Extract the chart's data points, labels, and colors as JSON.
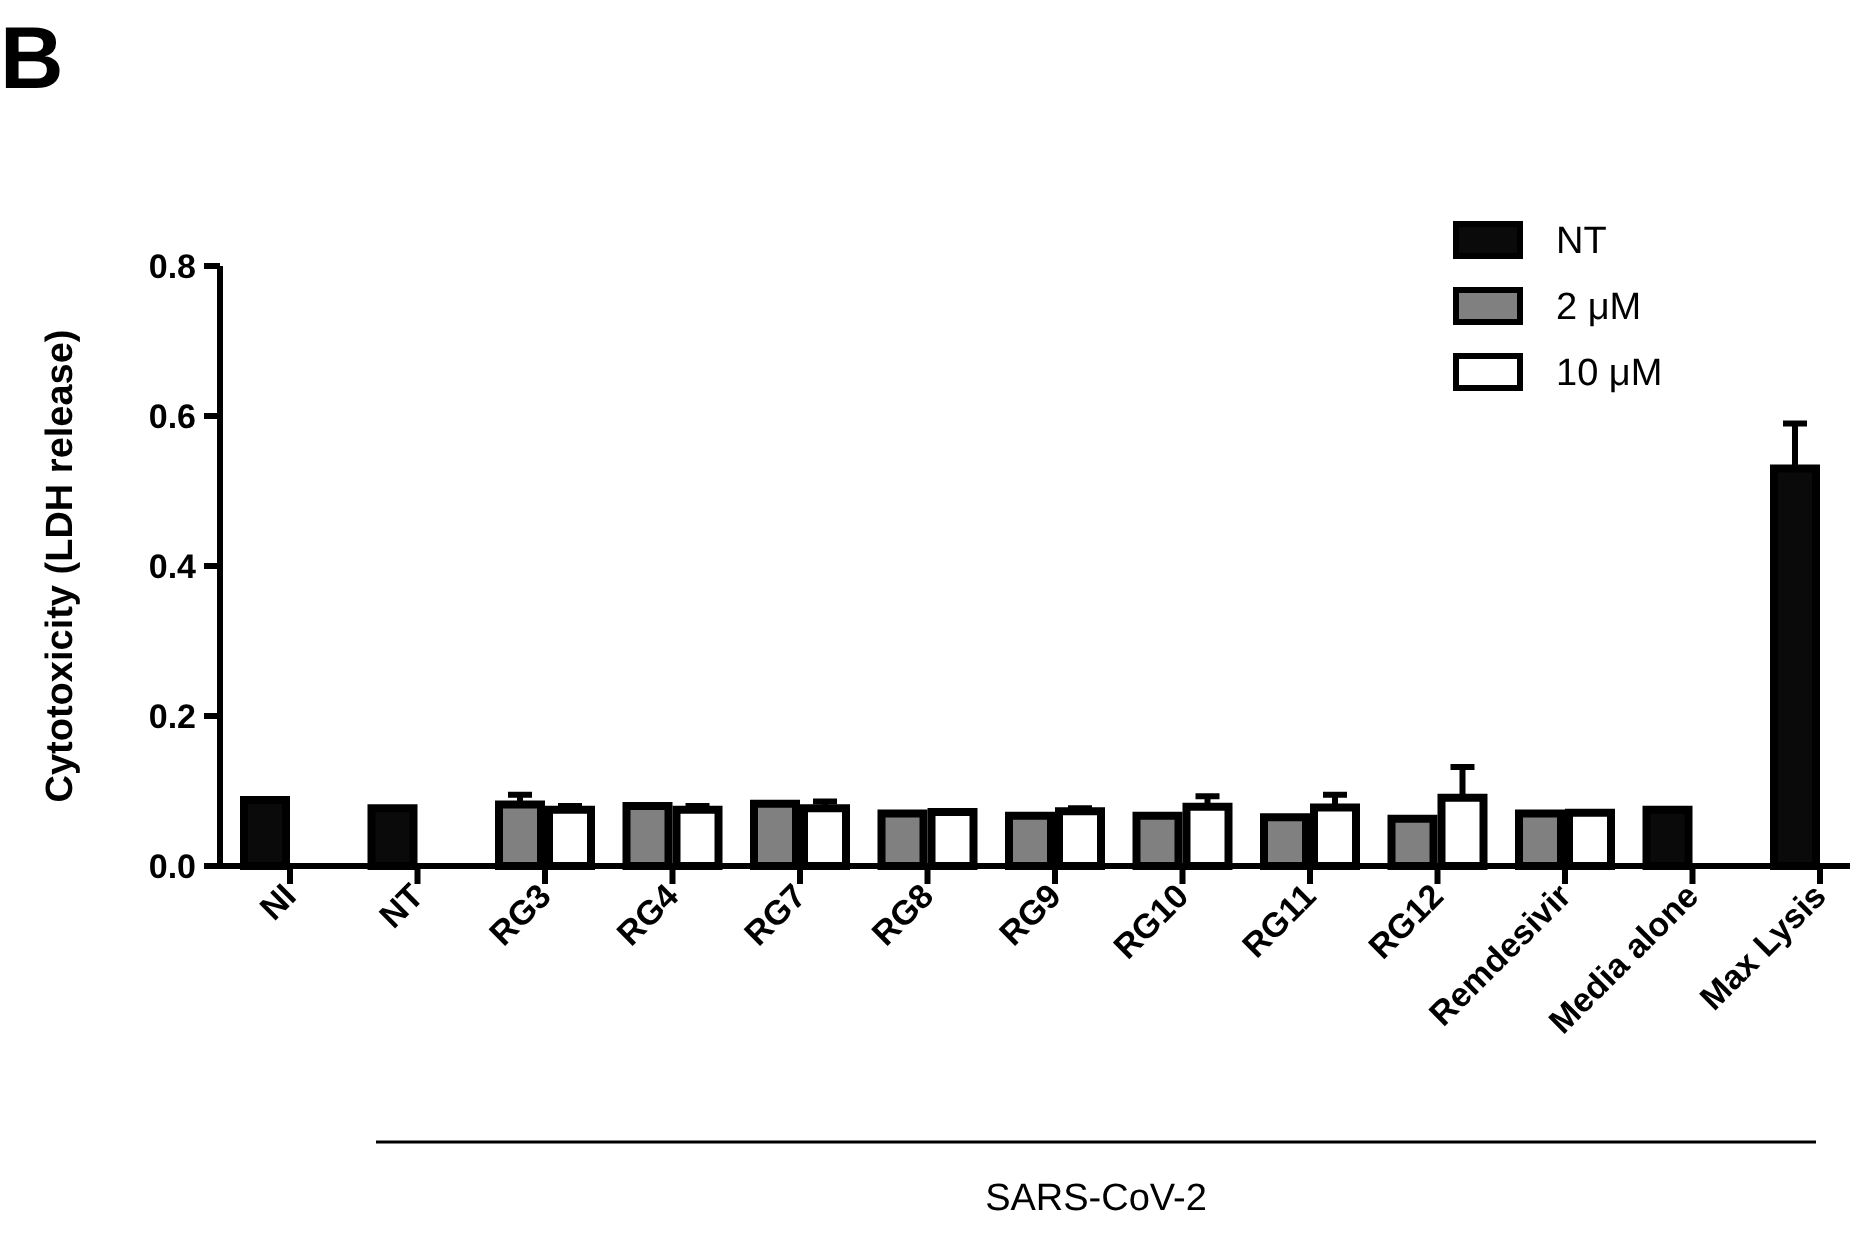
{
  "chart_data": {
    "type": "bar",
    "title": "B",
    "ylabel": "Cytotoxicity (LDH release)",
    "categories": [
      "NI",
      "NT",
      "RG3",
      "RG4",
      "RG7",
      "RG8",
      "RG9",
      "RG10",
      "RG11",
      "RG12",
      "Remdesivir",
      "Media alone",
      "Max Lysis"
    ],
    "series": [
      {
        "name": "NT",
        "color": "#0a0a0a",
        "values": [
          0.088,
          0.077,
          null,
          null,
          null,
          null,
          null,
          null,
          null,
          null,
          null,
          0.075,
          0.53
        ],
        "errors": [
          null,
          null,
          null,
          null,
          null,
          null,
          null,
          null,
          null,
          null,
          null,
          null,
          [
            0.53,
            0.59
          ]
        ]
      },
      {
        "name": "2 μM",
        "color": "#808080",
        "values": [
          null,
          null,
          0.082,
          0.08,
          0.083,
          0.07,
          0.067,
          0.067,
          0.065,
          0.063,
          0.07,
          null,
          null
        ],
        "errors": [
          null,
          null,
          [
            0.082,
            0.095
          ],
          null,
          null,
          null,
          null,
          null,
          null,
          null,
          null,
          null,
          null
        ]
      },
      {
        "name": "10 μM",
        "color": "#ffffff",
        "values": [
          null,
          null,
          0.075,
          0.075,
          0.077,
          0.072,
          0.073,
          0.079,
          0.078,
          0.091,
          0.071,
          null,
          null
        ],
        "errors": [
          null,
          null,
          [
            0.075,
            0.08
          ],
          [
            0.075,
            0.08
          ],
          [
            0.077,
            0.086
          ],
          null,
          [
            0.073,
            0.077
          ],
          [
            0.079,
            0.093
          ],
          [
            0.078,
            0.095
          ],
          [
            0.091,
            0.132
          ],
          null,
          null,
          null
        ]
      }
    ],
    "ylim": [
      0,
      0.8
    ],
    "yticks": [
      {
        "value": 0,
        "label": "0.0"
      },
      {
        "value": 0.2,
        "label": "0.2"
      },
      {
        "value": 0.4,
        "label": "0.4"
      },
      {
        "value": 0.6,
        "label": "0.6"
      },
      {
        "value": 0.8,
        "label": "0.8"
      }
    ],
    "annotations": [
      "SARS-CoV-2"
    ],
    "legend": "top right",
    "grid": false
  }
}
